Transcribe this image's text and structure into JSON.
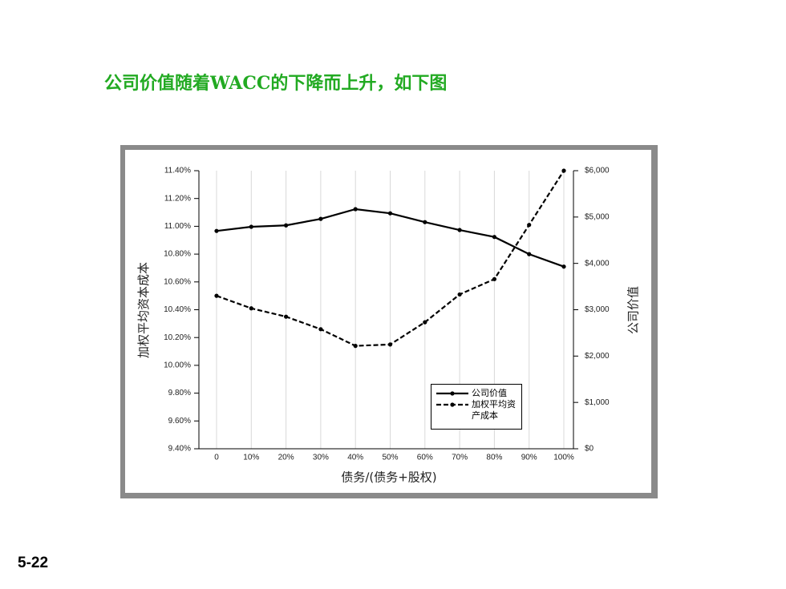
{
  "slide": {
    "title": "公司价值随着WACC的下降而上升，如下图",
    "page_number": "5-22"
  },
  "chart_data": {
    "type": "line",
    "x_label": "债务/(债务+股权)",
    "y_label": "加权平均资本成本",
    "y2_label": "公司价值",
    "categories": [
      "0",
      "10%",
      "20%",
      "30%",
      "40%",
      "50%",
      "60%",
      "70%",
      "80%",
      "90%",
      "100%"
    ],
    "series": [
      {
        "name": "公司价值",
        "color": "#000000",
        "axis": "y2",
        "dash": false,
        "values": [
          4700,
          4790,
          4820,
          4960,
          5170,
          5080,
          4890,
          4720,
          4570,
          4200,
          3930
        ]
      },
      {
        "name": "加权平均资产成本",
        "color": "#000000",
        "dash": true,
        "values": [
          10.5,
          10.41,
          10.35,
          10.26,
          10.14,
          10.15,
          10.31,
          10.51,
          10.62,
          11.01,
          11.4
        ]
      }
    ],
    "ylim": [
      9.4,
      11.4
    ],
    "yticks": [
      {
        "value": 9.4,
        "label": "9.40%"
      },
      {
        "value": 9.6,
        "label": "9.60%"
      },
      {
        "value": 9.8,
        "label": "9.80%"
      },
      {
        "value": 10.0,
        "label": "10.00%"
      },
      {
        "value": 10.2,
        "label": "10.20%"
      },
      {
        "value": 10.4,
        "label": "10.40%"
      },
      {
        "value": 10.6,
        "label": "10.60%"
      },
      {
        "value": 10.8,
        "label": "10.80%"
      },
      {
        "value": 11.0,
        "label": "11.00%"
      },
      {
        "value": 11.2,
        "label": "11.20%"
      },
      {
        "value": 11.4,
        "label": "11.40%"
      }
    ],
    "y2lim": [
      0,
      6000
    ],
    "y2ticks": [
      {
        "value": 0,
        "label": "$0"
      },
      {
        "value": 1000,
        "label": "$1,000"
      },
      {
        "value": 2000,
        "label": "$2,000"
      },
      {
        "value": 3000,
        "label": "$3,000"
      },
      {
        "value": 4000,
        "label": "$4,000"
      },
      {
        "value": 5000,
        "label": "$5,000"
      },
      {
        "value": 6000,
        "label": "$6,000"
      }
    ],
    "grid": true
  }
}
